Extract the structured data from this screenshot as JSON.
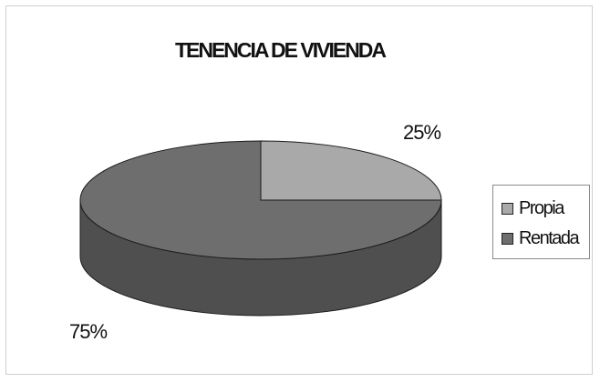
{
  "chart_data": {
    "type": "pie",
    "title": "TENENCIA DE VIVIENDA",
    "three_d": true,
    "labels": [
      "Propia",
      "Rentada"
    ],
    "values": [
      25,
      75
    ],
    "data_labels": [
      "25%",
      "75%"
    ],
    "colors": [
      "#a9a9a9",
      "#6e6e6e"
    ],
    "side_colors": [
      "#8a8a8a",
      "#4f4f4f"
    ],
    "legend": "right"
  }
}
